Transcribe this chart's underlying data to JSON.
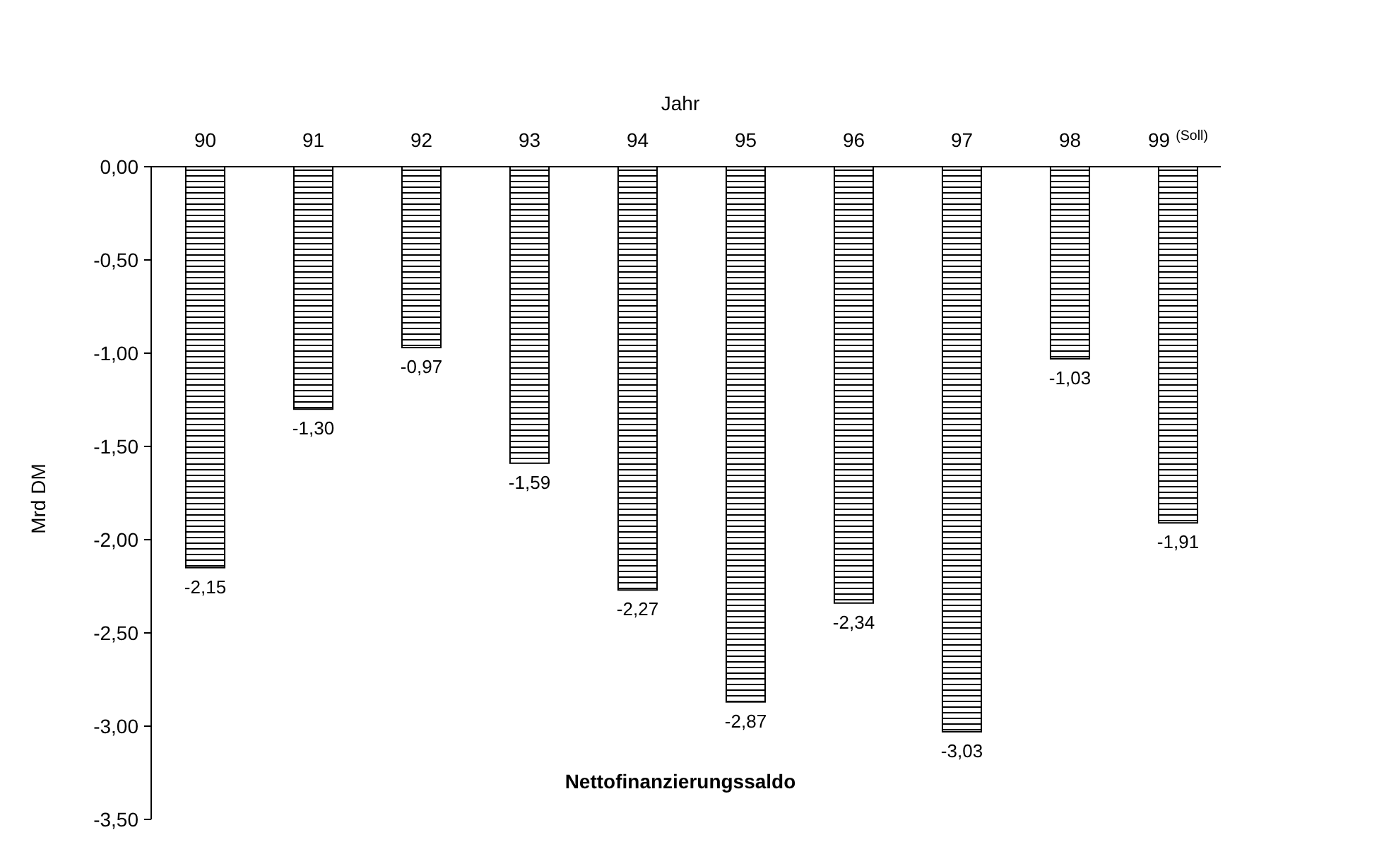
{
  "chart_data": {
    "type": "bar",
    "title": "Nettofinanzierungssaldo",
    "xlabel": "Jahr",
    "ylabel": "Mrd DM",
    "categories": [
      "90",
      "91",
      "92",
      "93",
      "94",
      "95",
      "96",
      "97",
      "98",
      "99$^{(Soll)}$"
    ],
    "values": [
      -2.15,
      -1.3,
      -0.97,
      -1.59,
      -2.27,
      -2.87,
      -2.34,
      -3.03,
      -1.03,
      -1.91
    ],
    "value_labels": [
      "-2,15",
      "-1,30",
      "-0,97",
      "-1,59",
      "-2,27",
      "-2,87",
      "-2,34",
      "-3,03",
      "-1,03",
      "-1,91"
    ],
    "color": "#000000",
    "ylim": [
      -3.5,
      0
    ],
    "yticks": [
      {
        "value": 0,
        "label": "0,00"
      },
      {
        "value": -0.5,
        "label": "-0,50"
      },
      {
        "value": -1,
        "label": "-1,00"
      },
      {
        "value": -1.5,
        "label": "-1,50"
      },
      {
        "value": -2,
        "label": "-2,00"
      },
      {
        "value": -2.5,
        "label": "-2,50"
      },
      {
        "value": -3,
        "label": "-3,00"
      },
      {
        "value": -3.5,
        "label": "-3,50"
      }
    ],
    "grid": false
  }
}
